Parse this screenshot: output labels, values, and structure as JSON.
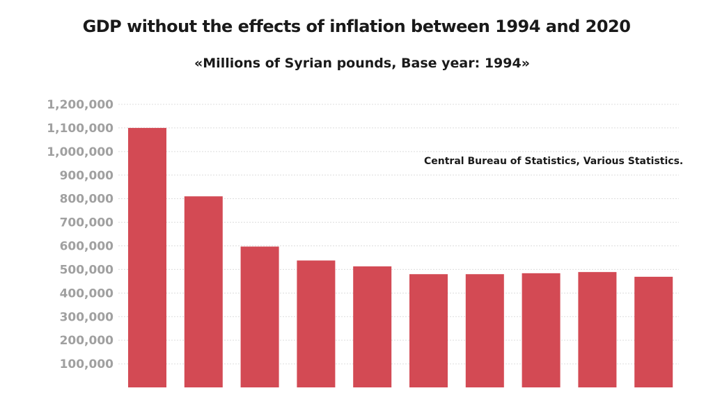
{
  "chart_data": {
    "type": "bar",
    "title": "GDP without the effects of inflation between 1994 and 2020",
    "subtitle": "«Millions of Syrian pounds, Base year: 1994»",
    "annotation": "Central Bureau of Statistics, Various Statistics.",
    "xlabel": "",
    "ylabel": "",
    "ylim": [
      0,
      1200000
    ],
    "yticks": [
      100000,
      200000,
      300000,
      400000,
      500000,
      600000,
      700000,
      800000,
      900000,
      1000000,
      1100000,
      1200000
    ],
    "ytick_labels": [
      "100,000",
      "200,000",
      "300,000",
      "400,000",
      "500,000",
      "600,000",
      "700,000",
      "800,000",
      "900,000",
      "1,000,000",
      "1,100,000",
      "1,200,000"
    ],
    "grid": true,
    "legend": "none",
    "bar_color": "#d34a54",
    "values": [
      1100000,
      810000,
      597000,
      538000,
      513000,
      480000,
      480000,
      484000,
      489000,
      469000
    ]
  }
}
